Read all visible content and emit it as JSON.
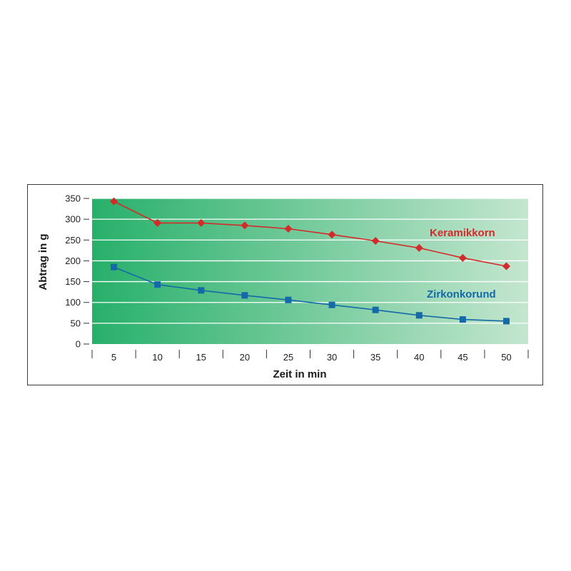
{
  "chart_data": {
    "type": "line",
    "title": "",
    "xlabel": "Zeit in min",
    "ylabel": "Abtrag in g",
    "x": [
      5,
      10,
      15,
      20,
      25,
      30,
      35,
      40,
      45,
      50
    ],
    "x_tick_labels": [
      "5",
      "10",
      "15",
      "20",
      "25",
      "30",
      "35",
      "40",
      "45",
      "50"
    ],
    "y_tick_labels": [
      "0",
      "50",
      "100",
      "150",
      "200",
      "250",
      "300",
      "350"
    ],
    "ylim": [
      0,
      350
    ],
    "grid": "horizontal",
    "series": [
      {
        "name": "Keramikkorn",
        "color": "#d42a2a",
        "marker": "diamond",
        "values": [
          343,
          291,
          291,
          285,
          277,
          263,
          248,
          231,
          207,
          187
        ]
      },
      {
        "name": "Zirkonkorund",
        "color": "#1469a8",
        "marker": "square",
        "values": [
          185,
          143,
          129,
          117,
          106,
          94,
          82,
          69,
          59,
          55
        ]
      }
    ],
    "background": {
      "gradient_from": "#27b06a",
      "gradient_to": "#c4e6cf"
    }
  }
}
